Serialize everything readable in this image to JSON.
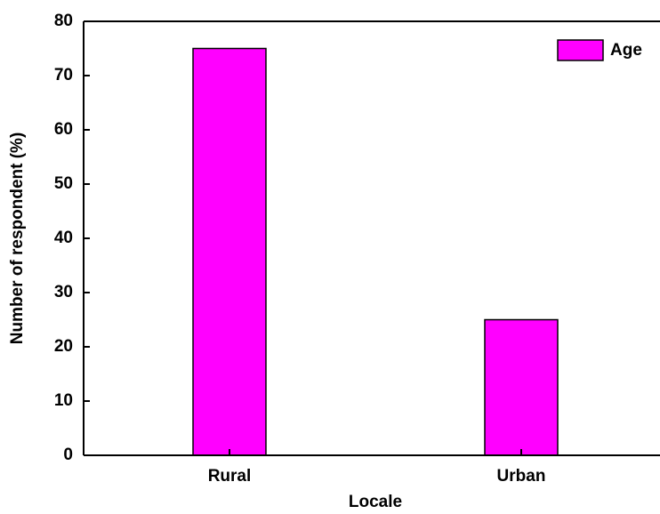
{
  "chart_data": {
    "type": "bar",
    "categories": [
      "Rural",
      "Urban"
    ],
    "values": [
      75,
      25
    ],
    "color": "#ff00ff",
    "series_name": "Age",
    "xlabel": "Locale",
    "ylabel": "Number of respondent (%)",
    "ylim": [
      0,
      80
    ],
    "yticks": [
      0,
      10,
      20,
      30,
      40,
      50,
      60,
      70,
      80
    ],
    "legend": "upper right"
  }
}
